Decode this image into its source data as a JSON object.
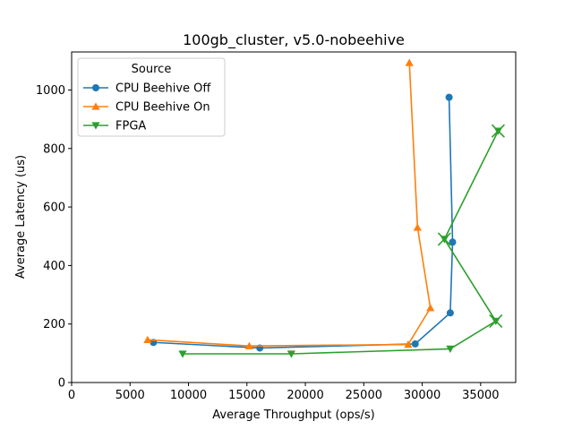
{
  "chart_data": {
    "type": "line",
    "title": "100gb_cluster, v5.0-nobeehive",
    "xlabel": "Average Throughput (ops/s)",
    "ylabel": "Average Latency (us)",
    "xlim": [
      0,
      38000
    ],
    "ylim": [
      0,
      1130
    ],
    "xticks": [
      0,
      5000,
      10000,
      15000,
      20000,
      25000,
      30000,
      35000
    ],
    "yticks": [
      0,
      200,
      400,
      600,
      800,
      1000
    ],
    "grid": false,
    "legend": {
      "title": "Source",
      "placement": "top-left"
    },
    "series": [
      {
        "name": "CPU Beehive Off",
        "color": "#1f77b4",
        "marker": "circle",
        "points": [
          [
            7000,
            137
          ],
          [
            16100,
            118
          ],
          [
            29400,
            132
          ],
          [
            32400,
            238
          ],
          [
            32600,
            480
          ],
          [
            32300,
            975
          ]
        ]
      },
      {
        "name": "CPU Beehive On",
        "color": "#ff7f0e",
        "marker": "triangle-up",
        "points": [
          [
            6500,
            146
          ],
          [
            15200,
            125
          ],
          [
            28800,
            130
          ],
          [
            30700,
            255
          ],
          [
            29600,
            530
          ],
          [
            28900,
            1093
          ]
        ]
      },
      {
        "name": "FPGA",
        "color": "#2ca02c",
        "marker": "triangle-down",
        "points": [
          [
            9500,
            98
          ],
          [
            18800,
            98
          ],
          [
            32400,
            115
          ],
          [
            36300,
            210
          ],
          [
            31900,
            490
          ],
          [
            36500,
            860
          ]
        ],
        "x_markers": [
          [
            36300,
            210
          ],
          [
            31900,
            490
          ],
          [
            36500,
            860
          ]
        ]
      }
    ]
  }
}
